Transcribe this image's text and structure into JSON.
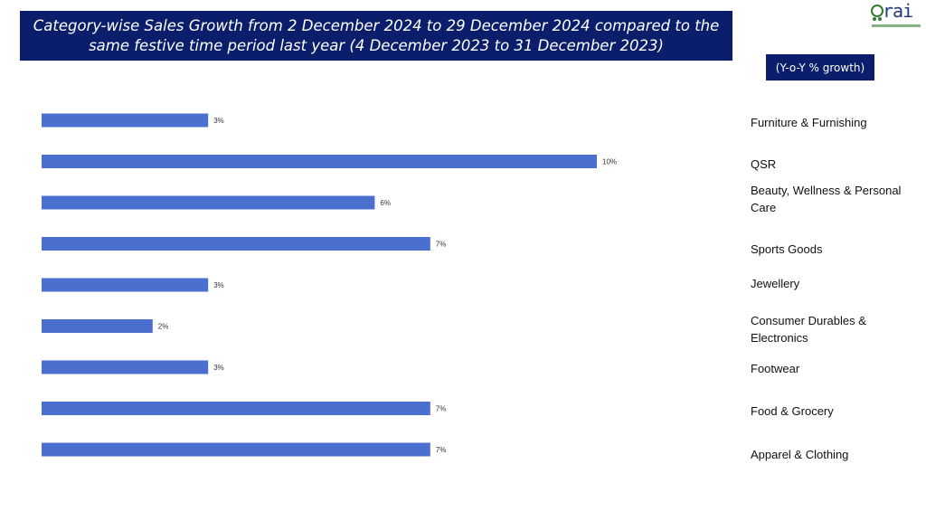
{
  "title": "Category-wise Sales Growth from 2 December 2024 to 29 December 2024 compared to the same festive time period last year (4 December 2023 to 31 December 2023)",
  "logo_text": "rai",
  "unit_label": "(Y-o-Y % growth)",
  "colors": {
    "bar": "#4a6fcf",
    "header": "#0b1e6b"
  },
  "chart_data": {
    "type": "bar",
    "orientation": "horizontal",
    "title": "Category-wise Sales Growth from 2 December 2024 to 29 December 2024 compared to the same festive time period last year (4 December 2023 to 31 December 2023)",
    "ylabel": "(Y-o-Y % growth)",
    "categories": [
      "Furniture &  Furnishing",
      "QSR",
      "Beauty, Wellness & Personal Care",
      "Sports Goods",
      "Jewellery",
      "Consumer Durables & Electronics",
      "Footwear",
      "Food & Grocery",
      "Apparel & Clothing"
    ],
    "values": [
      3,
      10,
      6,
      7,
      3,
      2,
      3,
      7,
      7
    ],
    "value_labels": [
      "3%",
      "10%",
      "6%",
      "7%",
      "3%",
      "2%",
      "3%",
      "7%",
      "7%"
    ],
    "xlim": [
      0,
      10
    ],
    "grid": false,
    "legend": "none"
  }
}
